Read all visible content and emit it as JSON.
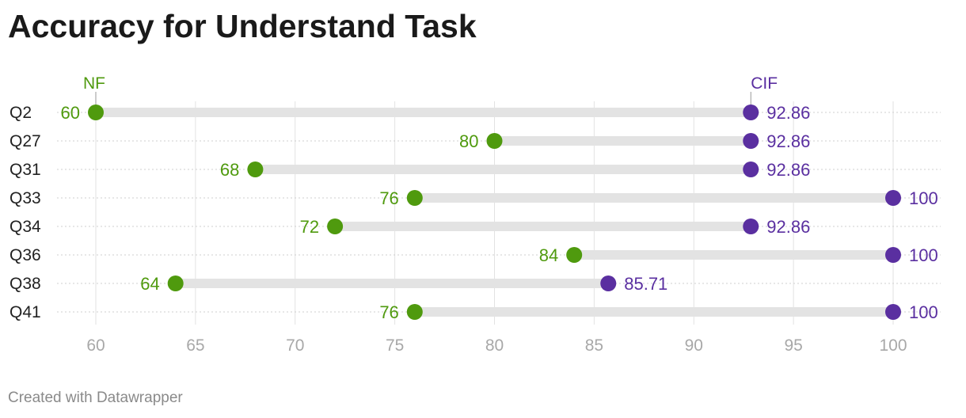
{
  "chart_data": {
    "type": "dot-range",
    "title": "Accuracy for Understand Task",
    "categories": [
      "Q2",
      "Q27",
      "Q31",
      "Q33",
      "Q34",
      "Q36",
      "Q38",
      "Q41"
    ],
    "series": [
      {
        "name": "NF",
        "color": "#4f9a0e",
        "values": [
          "60",
          "80",
          "68",
          "76",
          "72",
          "84",
          "64",
          "76"
        ]
      },
      {
        "name": "CIF",
        "color": "#5a2fa0",
        "values": [
          "92.86",
          "92.86",
          "92.86",
          "100",
          "92.86",
          "100",
          "85.71",
          "100"
        ]
      }
    ],
    "x_ticks": [
      "60",
      "65",
      "70",
      "75",
      "80",
      "85",
      "90",
      "95",
      "100"
    ],
    "xlim": [
      60,
      100
    ],
    "grid": true,
    "legend": "direct labels above first row"
  },
  "footer": {
    "credit": "Created with Datawrapper"
  }
}
